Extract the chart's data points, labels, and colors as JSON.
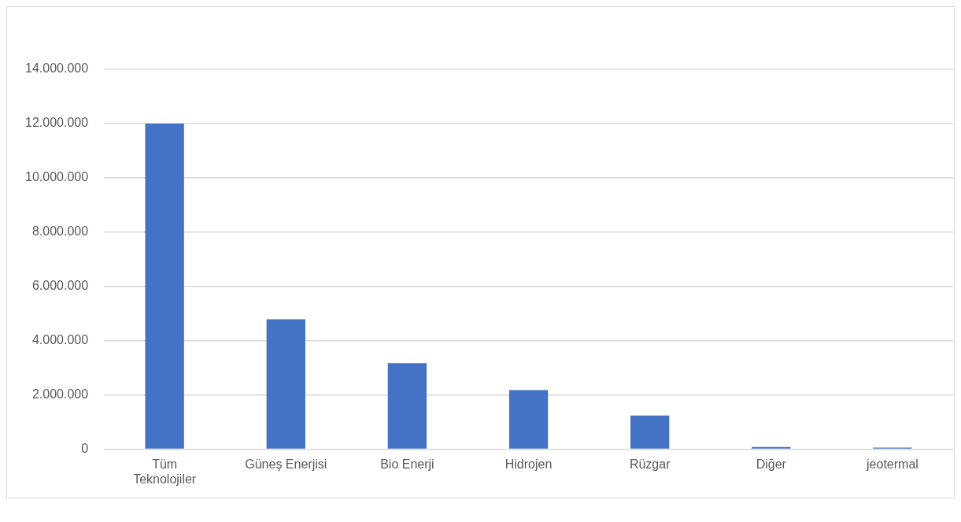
{
  "chart_data": {
    "type": "bar",
    "categories": [
      "Tüm Teknolojiler",
      "Güneş Enerjisi",
      "Bio Enerji",
      "Hidrojen",
      "Rüzgar",
      "Diğer",
      "jeotermal"
    ],
    "values": [
      12000000,
      4790000,
      3170000,
      2180000,
      1240000,
      80000,
      60000
    ],
    "color": "#4472c4",
    "ylim": [
      0,
      14000000
    ],
    "yticks": [
      {
        "value": 0,
        "label": "0"
      },
      {
        "value": 2000000,
        "label": "2.000.000"
      },
      {
        "value": 4000000,
        "label": "4.000.000"
      },
      {
        "value": 6000000,
        "label": "6.000.000"
      },
      {
        "value": 8000000,
        "label": "8.000.000"
      },
      {
        "value": 10000000,
        "label": "10.000.000"
      },
      {
        "value": 12000000,
        "label": "12.000.000"
      },
      {
        "value": 14000000,
        "label": "14.000.000"
      }
    ],
    "grid": "y"
  }
}
